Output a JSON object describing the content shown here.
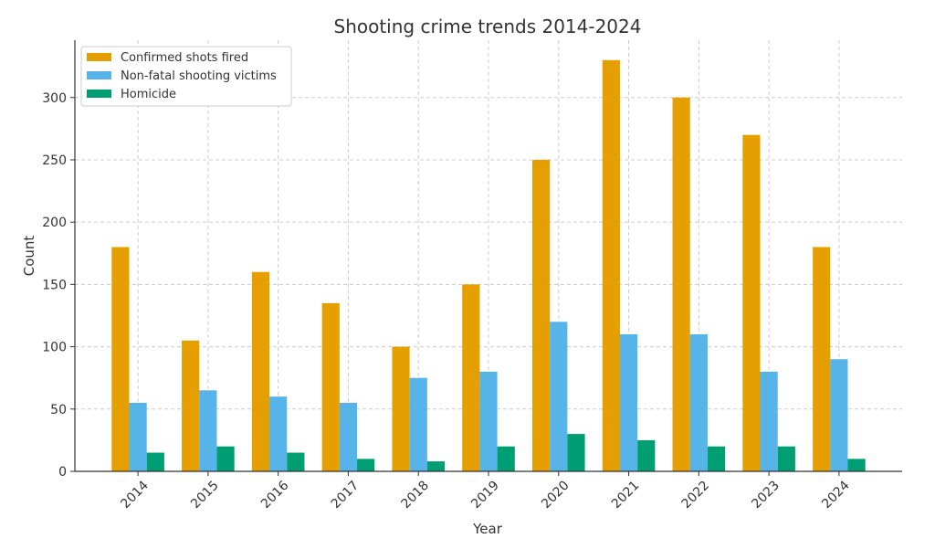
{
  "chart_data": {
    "type": "bar",
    "title": "Shooting crime trends 2014-2024",
    "xlabel": "Year",
    "ylabel": "Count",
    "categories": [
      "2014",
      "2015",
      "2016",
      "2017",
      "2018",
      "2019",
      "2020",
      "2021",
      "2022",
      "2023",
      "2024"
    ],
    "series": [
      {
        "name": "Confirmed shots fired",
        "color": "#E69F00",
        "values": [
          180,
          105,
          160,
          135,
          100,
          150,
          250,
          330,
          300,
          270,
          180
        ]
      },
      {
        "name": "Non-fatal shooting victims",
        "color": "#56B4E9",
        "values": [
          55,
          65,
          60,
          55,
          75,
          80,
          120,
          110,
          110,
          80,
          90
        ]
      },
      {
        "name": "Homicide",
        "color": "#009E73",
        "values": [
          15,
          20,
          15,
          10,
          8,
          20,
          30,
          25,
          20,
          20,
          10
        ]
      }
    ],
    "ylim": [
      0,
      346
    ],
    "yticks": [
      0,
      50,
      100,
      150,
      200,
      250,
      300
    ],
    "grid": true,
    "legend": "top-left"
  }
}
